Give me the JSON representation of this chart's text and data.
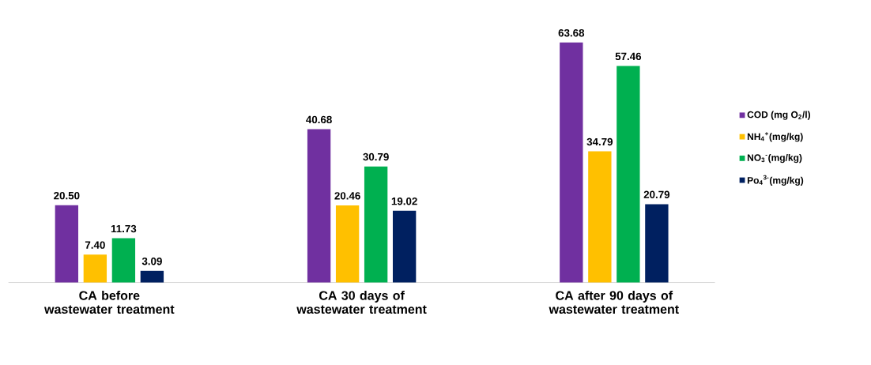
{
  "chart_data": {
    "type": "bar",
    "categories": [
      "CA before wastewater treatment",
      "CA 30 days of wastewater treatment",
      "CA after 90 days of wastewater treatment"
    ],
    "series": [
      {
        "name": "COD (mg O$_{2}$/l)",
        "color": "#7030a0",
        "values": [
          20.5,
          40.68,
          63.68
        ],
        "value_labels": [
          "20.50",
          "40.68",
          "63.68"
        ]
      },
      {
        "name": "NH$_{4}$$^{+}$(mg/kg)",
        "color": "#ffc000",
        "values": [
          7.4,
          20.46,
          34.79
        ],
        "value_labels": [
          "7.40",
          "20.46",
          "34.79"
        ]
      },
      {
        "name": "NO$_{3}$$^{-}$(mg/kg)",
        "color": "#00b050",
        "values": [
          11.73,
          30.79,
          57.46
        ],
        "value_labels": [
          "11.73",
          "30.79",
          "57.46"
        ]
      },
      {
        "name": "Po$_{4}$$^{3-}$(mg/kg)",
        "color": "#002060",
        "values": [
          3.09,
          19.02,
          20.79
        ],
        "value_labels": [
          "3.09",
          "19.02",
          "20.79"
        ]
      }
    ],
    "legend": "right"
  }
}
